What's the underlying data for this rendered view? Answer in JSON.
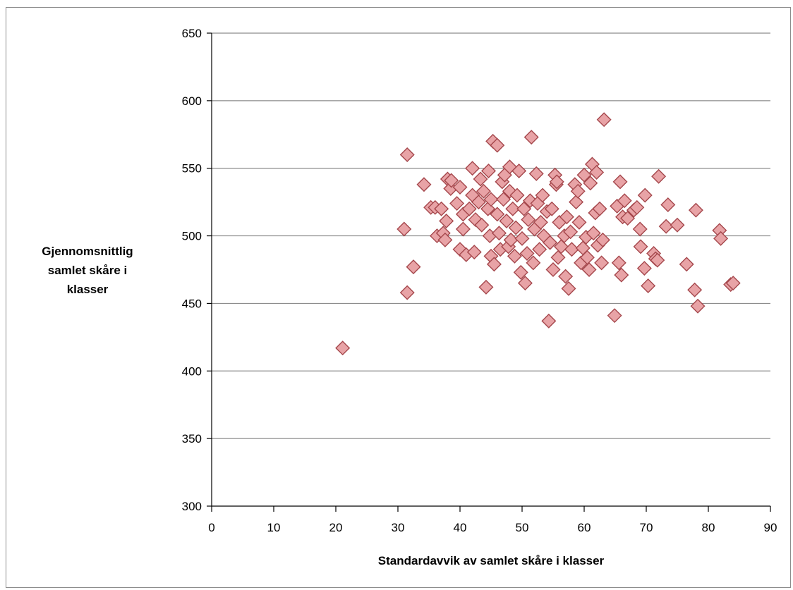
{
  "chart_data": {
    "type": "scatter",
    "title": "",
    "xlabel": "Standardavvik av samlet skåre i klasser",
    "ylabel_lines": [
      "Gjennomsnittlig",
      "samlet skåre i",
      "klasser"
    ],
    "xlim": [
      0,
      90
    ],
    "ylim": [
      300,
      650
    ],
    "x_ticks": [
      "0",
      "10",
      "20",
      "30",
      "40",
      "50",
      "60",
      "70",
      "80",
      "90"
    ],
    "y_ticks": [
      "300",
      "350",
      "400",
      "450",
      "500",
      "550",
      "600",
      "650"
    ],
    "grid": "horizontal",
    "legend": "none",
    "marker": "diamond",
    "colors": {
      "marker_fill": "#e8a3a6",
      "marker_stroke": "#a5474c",
      "gridline": "#8c8c8c"
    },
    "points": [
      [
        21.1,
        417
      ],
      [
        31.5,
        560
      ],
      [
        31.0,
        505
      ],
      [
        31.5,
        458
      ],
      [
        32.5,
        477
      ],
      [
        34.2,
        538
      ],
      [
        35.3,
        521
      ],
      [
        36.0,
        521
      ],
      [
        36.3,
        500
      ],
      [
        37.0,
        520
      ],
      [
        37.3,
        502
      ],
      [
        37.6,
        497
      ],
      [
        37.8,
        511
      ],
      [
        38.0,
        542
      ],
      [
        38.5,
        535
      ],
      [
        38.6,
        541
      ],
      [
        39.5,
        524
      ],
      [
        40.0,
        536
      ],
      [
        40.0,
        490
      ],
      [
        40.5,
        516
      ],
      [
        40.5,
        505
      ],
      [
        41.0,
        486
      ],
      [
        41.5,
        520
      ],
      [
        42.0,
        550
      ],
      [
        42.0,
        530
      ],
      [
        42.3,
        488
      ],
      [
        42.5,
        512
      ],
      [
        43.0,
        525
      ],
      [
        43.3,
        542
      ],
      [
        43.5,
        508
      ],
      [
        43.8,
        533
      ],
      [
        44.2,
        462
      ],
      [
        44.5,
        520
      ],
      [
        44.6,
        548
      ],
      [
        44.8,
        500
      ],
      [
        45.0,
        485
      ],
      [
        45.0,
        527
      ],
      [
        45.3,
        570
      ],
      [
        45.5,
        479
      ],
      [
        46.0,
        567
      ],
      [
        46.0,
        516
      ],
      [
        46.3,
        502
      ],
      [
        46.5,
        490
      ],
      [
        46.8,
        540
      ],
      [
        47.0,
        527
      ],
      [
        47.2,
        545
      ],
      [
        47.5,
        511
      ],
      [
        47.8,
        492
      ],
      [
        48.0,
        551
      ],
      [
        48.0,
        533
      ],
      [
        48.2,
        497
      ],
      [
        48.5,
        520
      ],
      [
        48.8,
        485
      ],
      [
        49.0,
        506
      ],
      [
        49.2,
        530
      ],
      [
        49.5,
        548
      ],
      [
        49.8,
        473
      ],
      [
        50.0,
        498
      ],
      [
        50.3,
        520
      ],
      [
        50.5,
        465
      ],
      [
        50.8,
        487
      ],
      [
        51.0,
        512
      ],
      [
        51.3,
        526
      ],
      [
        51.5,
        573
      ],
      [
        51.8,
        480
      ],
      [
        52.0,
        505
      ],
      [
        52.3,
        546
      ],
      [
        52.5,
        524
      ],
      [
        52.8,
        490
      ],
      [
        53.0,
        510
      ],
      [
        53.3,
        530
      ],
      [
        53.5,
        500
      ],
      [
        54.0,
        518
      ],
      [
        54.3,
        437
      ],
      [
        54.5,
        495
      ],
      [
        54.8,
        520
      ],
      [
        55.0,
        475
      ],
      [
        55.3,
        545
      ],
      [
        55.5,
        538
      ],
      [
        55.6,
        540
      ],
      [
        55.8,
        484
      ],
      [
        56.0,
        510
      ],
      [
        56.3,
        492
      ],
      [
        56.8,
        500
      ],
      [
        57.0,
        470
      ],
      [
        57.2,
        514
      ],
      [
        57.5,
        461
      ],
      [
        57.8,
        503
      ],
      [
        58.0,
        490
      ],
      [
        58.5,
        538
      ],
      [
        58.7,
        525
      ],
      [
        59.0,
        533
      ],
      [
        59.2,
        510
      ],
      [
        59.5,
        480
      ],
      [
        59.8,
        491
      ],
      [
        60.0,
        545
      ],
      [
        60.3,
        499
      ],
      [
        60.5,
        484
      ],
      [
        60.8,
        475
      ],
      [
        61.0,
        539
      ],
      [
        61.3,
        553
      ],
      [
        61.5,
        502
      ],
      [
        61.8,
        517
      ],
      [
        62.0,
        547
      ],
      [
        62.2,
        493
      ],
      [
        62.5,
        520
      ],
      [
        62.8,
        480
      ],
      [
        63.0,
        497
      ],
      [
        63.2,
        586
      ],
      [
        64.9,
        441
      ],
      [
        65.3,
        522
      ],
      [
        65.6,
        480
      ],
      [
        65.8,
        540
      ],
      [
        66.0,
        471
      ],
      [
        66.2,
        514
      ],
      [
        66.5,
        526
      ],
      [
        67.0,
        513
      ],
      [
        68.0,
        519
      ],
      [
        68.5,
        521
      ],
      [
        69.0,
        505
      ],
      [
        69.1,
        492
      ],
      [
        69.7,
        476
      ],
      [
        69.8,
        530
      ],
      [
        70.3,
        463
      ],
      [
        71.2,
        487
      ],
      [
        71.5,
        483
      ],
      [
        71.8,
        482
      ],
      [
        72.0,
        544
      ],
      [
        73.2,
        507
      ],
      [
        73.5,
        523
      ],
      [
        75.0,
        508
      ],
      [
        76.5,
        479
      ],
      [
        77.8,
        460
      ],
      [
        78.0,
        519
      ],
      [
        78.3,
        448
      ],
      [
        81.8,
        504
      ],
      [
        82.0,
        498
      ],
      [
        83.6,
        464
      ],
      [
        84.0,
        465
      ]
    ]
  }
}
